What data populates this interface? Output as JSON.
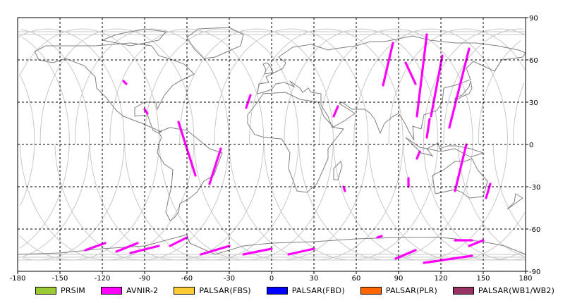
{
  "map": {
    "lon_ticks": [
      "-180",
      "-150",
      "-120",
      "-90",
      "-60",
      "-30",
      "0",
      "30",
      "60",
      "90",
      "120",
      "150",
      "180"
    ],
    "lat_ticks": [
      "90",
      "60",
      "30",
      "0",
      "-30",
      "-60",
      "-90"
    ],
    "lon_range": [
      -180,
      180
    ],
    "lat_range": [
      -90,
      90
    ],
    "grid": "dashed",
    "colors": {
      "ocean": "#ffffff",
      "coast": "#7f7f7f",
      "orbit": "#c8c8c8",
      "grid": "#000000"
    }
  },
  "legend": [
    {
      "label": "PRSIM",
      "color": "#99cc33"
    },
    {
      "label": "AVNIR-2",
      "color": "#ff00ff"
    },
    {
      "label": "PALSAR(FBS)",
      "color": "#ffcc33"
    },
    {
      "label": "PALSAR(FBD)",
      "color": "#0000ff"
    },
    {
      "label": "PALSAR(PLR)",
      "color": "#ff6600"
    },
    {
      "label": "PALSAR(WB1/WB2)",
      "color": "#993366"
    }
  ],
  "avnir_swaths": [
    [
      [
        -105,
        45
      ],
      [
        -103,
        43
      ]
    ],
    [
      [
        -90,
        25
      ],
      [
        -88,
        22
      ]
    ],
    [
      [
        -66,
        16
      ],
      [
        -54,
        -22
      ]
    ],
    [
      [
        -36,
        -3
      ],
      [
        -44,
        -28
      ]
    ],
    [
      [
        -72,
        -72
      ],
      [
        -60,
        -66
      ]
    ],
    [
      [
        -132,
        -75
      ],
      [
        -118,
        -70
      ]
    ],
    [
      [
        -110,
        -76
      ],
      [
        -95,
        -70
      ]
    ],
    [
      [
        -100,
        -77
      ],
      [
        -80,
        -72
      ]
    ],
    [
      [
        -50,
        -78
      ],
      [
        -30,
        -72
      ]
    ],
    [
      [
        -20,
        -78
      ],
      [
        0,
        -74
      ]
    ],
    [
      [
        12,
        -78
      ],
      [
        30,
        -74
      ]
    ],
    [
      [
        -18,
        26
      ],
      [
        -15,
        35
      ]
    ],
    [
      [
        44,
        20
      ],
      [
        47,
        27
      ]
    ],
    [
      [
        51,
        -30
      ],
      [
        52,
        -33
      ]
    ],
    [
      [
        75,
        -66
      ],
      [
        78,
        -65
      ]
    ],
    [
      [
        79,
        42
      ],
      [
        86,
        72
      ]
    ],
    [
      [
        95,
        58
      ],
      [
        102,
        43
      ]
    ],
    [
      [
        110,
        78
      ],
      [
        103,
        20
      ]
    ],
    [
      [
        121,
        63
      ],
      [
        113,
        20
      ]
    ],
    [
      [
        140,
        68
      ],
      [
        126,
        12
      ]
    ],
    [
      [
        97,
        -24
      ],
      [
        97,
        -30
      ]
    ],
    [
      [
        112,
        18
      ],
      [
        110,
        5
      ]
    ],
    [
      [
        105,
        -5
      ],
      [
        103,
        -10
      ]
    ],
    [
      [
        138,
        0
      ],
      [
        130,
        -33
      ]
    ],
    [
      [
        155,
        -28
      ],
      [
        152,
        -38
      ]
    ],
    [
      [
        88,
        -81
      ],
      [
        102,
        -75
      ]
    ],
    [
      [
        108,
        -84
      ],
      [
        142,
        -79
      ]
    ],
    [
      [
        130,
        -68
      ],
      [
        142,
        -68
      ]
    ],
    [
      [
        140,
        -72
      ],
      [
        150,
        -68
      ]
    ]
  ]
}
